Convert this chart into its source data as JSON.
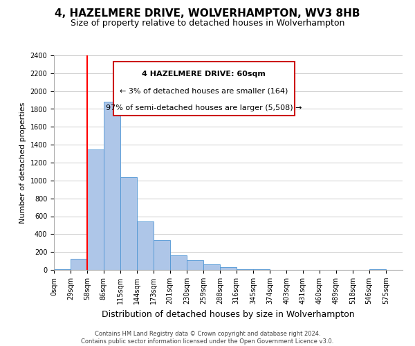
{
  "title": "4, HAZELMERE DRIVE, WOLVERHAMPTON, WV3 8HB",
  "subtitle": "Size of property relative to detached houses in Wolverhampton",
  "xlabel": "Distribution of detached houses by size in Wolverhampton",
  "ylabel": "Number of detached properties",
  "bin_labels": [
    "0sqm",
    "29sqm",
    "58sqm",
    "86sqm",
    "115sqm",
    "144sqm",
    "173sqm",
    "201sqm",
    "230sqm",
    "259sqm",
    "288sqm",
    "316sqm",
    "345sqm",
    "374sqm",
    "403sqm",
    "431sqm",
    "460sqm",
    "489sqm",
    "518sqm",
    "546sqm",
    "575sqm"
  ],
  "bin_edges": [
    0,
    29,
    58,
    86,
    115,
    144,
    173,
    201,
    230,
    259,
    288,
    316,
    345,
    374,
    403,
    431,
    460,
    489,
    518,
    546,
    575
  ],
  "bar_values": [
    5,
    125,
    1350,
    1880,
    1040,
    545,
    335,
    165,
    105,
    60,
    28,
    10,
    5,
    2,
    1,
    0,
    0,
    0,
    0,
    5,
    0
  ],
  "bar_color": "#aec6e8",
  "bar_edge_color": "#4f96d4",
  "grid_color": "#cccccc",
  "red_line_x": 58,
  "annotation_title": "4 HAZELMERE DRIVE: 60sqm",
  "annotation_line1": "← 3% of detached houses are smaller (164)",
  "annotation_line2": "97% of semi-detached houses are larger (5,508) →",
  "annotation_box_color": "#ffffff",
  "annotation_box_edge": "#cc0000",
  "title_fontsize": 11,
  "subtitle_fontsize": 9,
  "xlabel_fontsize": 9,
  "ylabel_fontsize": 8,
  "tick_fontsize": 7,
  "ann_fontsize": 8,
  "footer_line1": "Contains HM Land Registry data © Crown copyright and database right 2024.",
  "footer_line2": "Contains public sector information licensed under the Open Government Licence v3.0.",
  "ylim": [
    0,
    2400
  ],
  "yticks": [
    0,
    200,
    400,
    600,
    800,
    1000,
    1200,
    1400,
    1600,
    1800,
    2000,
    2200,
    2400
  ]
}
